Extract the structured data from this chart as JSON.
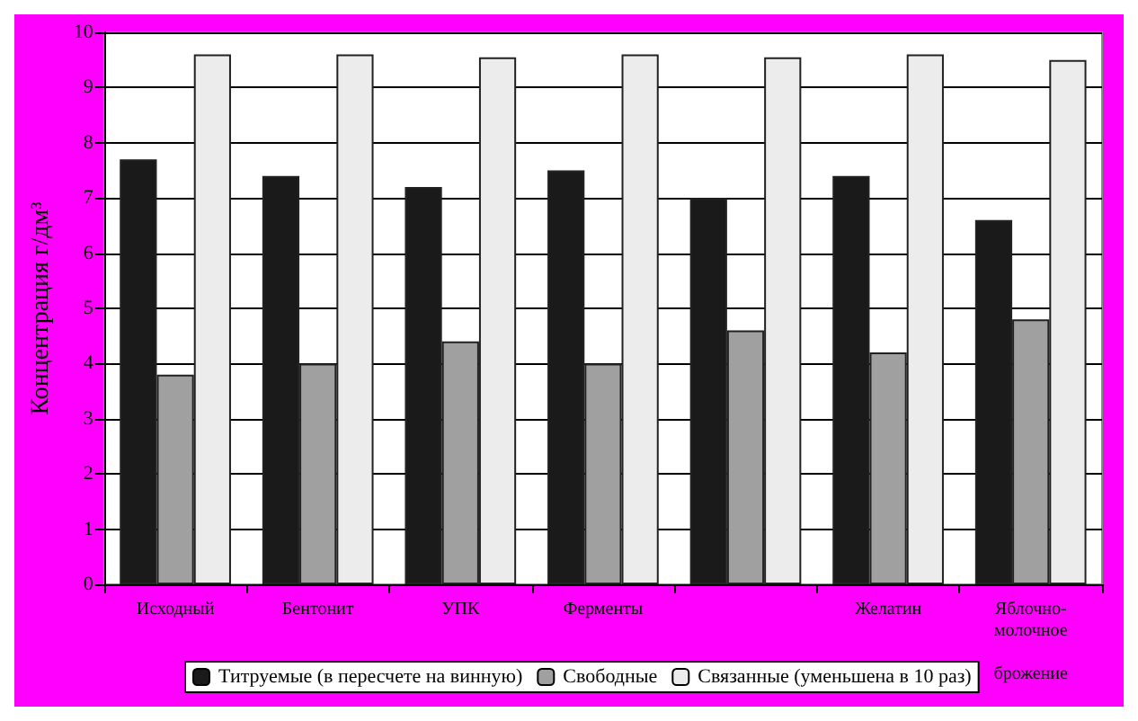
{
  "chart_data": {
    "type": "bar",
    "ylabel": "Концентрация г/дм³",
    "categories": [
      "Исходный",
      "Бентонит",
      "УПК",
      "Ферменты",
      null,
      "Желатин",
      "Яблочно-молочное брожение"
    ],
    "series": [
      {
        "name": "Титруемые (в пересчете на винную)",
        "color": "#1a1a1a",
        "values": [
          7.7,
          7.4,
          7.2,
          7.5,
          7.0,
          7.4,
          6.6
        ]
      },
      {
        "name": "Свободные",
        "color": "#a0a0a0",
        "values": [
          3.8,
          4.0,
          4.4,
          4.0,
          4.6,
          4.2,
          4.8
        ]
      },
      {
        "name": "Связанные (уменьшена в 10 раз)",
        "color": "#ececec",
        "values": [
          9.6,
          9.6,
          9.55,
          9.6,
          9.55,
          9.6,
          9.5
        ]
      }
    ],
    "ylim": [
      0,
      10
    ],
    "yticks": [
      0,
      1,
      2,
      3,
      4,
      5,
      6,
      7,
      8,
      9,
      10
    ],
    "grid": "y",
    "legend": "bottom"
  }
}
